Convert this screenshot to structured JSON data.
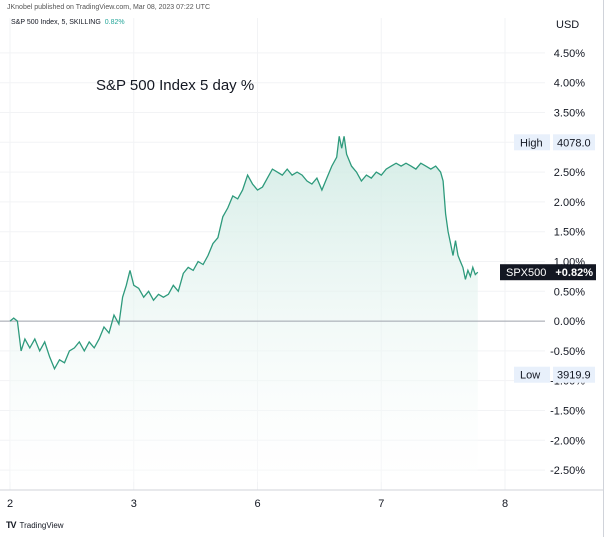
{
  "header": {
    "published_by": "JKnobel published on TradingView.com, Mar 08, 2023 07:22 UTC",
    "legend_symbol": "S&P 500 Index, 5, SKILLING",
    "legend_change": "0.82%",
    "currency": "USD"
  },
  "footer": {
    "logo_mark": "TV",
    "logo_text": "TradingView"
  },
  "colors": {
    "line": "#2e9a7c",
    "fill_top": "#cfeae3",
    "zero_line": "#9ea3ad",
    "label_bg": "#e8f0fb",
    "badge_bg": "#131722"
  },
  "chart_data": {
    "type": "area",
    "title": "S&P 500 Index 5 day %",
    "series_name": "SPX500",
    "ylim": [
      -2.7,
      4.75
    ],
    "xlim": [
      0,
      4.3
    ],
    "y_ticks": [
      "4.50%",
      "4.00%",
      "3.50%",
      "3.00%",
      "2.50%",
      "2.00%",
      "1.50%",
      "1.00%",
      "0.50%",
      "0.00%",
      "-0.50%",
      "-1.00%",
      "-1.50%",
      "-2.00%",
      "-2.50%"
    ],
    "y_tick_values": [
      4.5,
      4.0,
      3.5,
      3.0,
      2.5,
      2.0,
      1.5,
      1.0,
      0.5,
      0.0,
      -0.5,
      -1.0,
      -1.5,
      -2.0,
      -2.5
    ],
    "x_ticks": [
      "2",
      "3",
      "6",
      "7",
      "8"
    ],
    "x_tick_values": [
      0.0,
      1.0,
      2.0,
      3.0,
      4.0
    ],
    "high": {
      "label": "High",
      "value": "4078.0",
      "pct": 3.0
    },
    "low": {
      "label": "Low",
      "value": "3919.9",
      "pct": -0.9
    },
    "last": {
      "label": "SPX500",
      "value": "+0.82%",
      "pct": 0.82
    },
    "points": [
      [
        0.0,
        0.0
      ],
      [
        0.03,
        0.05
      ],
      [
        0.06,
        0.0
      ],
      [
        0.09,
        -0.5
      ],
      [
        0.12,
        -0.3
      ],
      [
        0.16,
        -0.45
      ],
      [
        0.2,
        -0.3
      ],
      [
        0.24,
        -0.5
      ],
      [
        0.28,
        -0.35
      ],
      [
        0.32,
        -0.6
      ],
      [
        0.36,
        -0.8
      ],
      [
        0.4,
        -0.65
      ],
      [
        0.44,
        -0.7
      ],
      [
        0.48,
        -0.5
      ],
      [
        0.52,
        -0.45
      ],
      [
        0.56,
        -0.35
      ],
      [
        0.6,
        -0.5
      ],
      [
        0.64,
        -0.35
      ],
      [
        0.68,
        -0.45
      ],
      [
        0.72,
        -0.3
      ],
      [
        0.76,
        -0.1
      ],
      [
        0.8,
        -0.2
      ],
      [
        0.84,
        0.1
      ],
      [
        0.88,
        -0.05
      ],
      [
        0.91,
        0.4
      ],
      [
        0.94,
        0.6
      ],
      [
        0.97,
        0.85
      ],
      [
        1.0,
        0.6
      ],
      [
        1.04,
        0.55
      ],
      [
        1.08,
        0.4
      ],
      [
        1.12,
        0.5
      ],
      [
        1.16,
        0.35
      ],
      [
        1.2,
        0.45
      ],
      [
        1.24,
        0.4
      ],
      [
        1.28,
        0.45
      ],
      [
        1.32,
        0.6
      ],
      [
        1.36,
        0.5
      ],
      [
        1.4,
        0.8
      ],
      [
        1.44,
        0.9
      ],
      [
        1.48,
        0.85
      ],
      [
        1.52,
        1.0
      ],
      [
        1.56,
        0.95
      ],
      [
        1.6,
        1.1
      ],
      [
        1.64,
        1.3
      ],
      [
        1.68,
        1.4
      ],
      [
        1.72,
        1.75
      ],
      [
        1.76,
        1.9
      ],
      [
        1.8,
        2.1
      ],
      [
        1.84,
        2.05
      ],
      [
        1.88,
        2.2
      ],
      [
        1.92,
        2.45
      ],
      [
        1.96,
        2.3
      ],
      [
        2.0,
        2.2
      ],
      [
        2.04,
        2.25
      ],
      [
        2.08,
        2.4
      ],
      [
        2.12,
        2.55
      ],
      [
        2.16,
        2.5
      ],
      [
        2.2,
        2.45
      ],
      [
        2.24,
        2.55
      ],
      [
        2.28,
        2.45
      ],
      [
        2.32,
        2.5
      ],
      [
        2.36,
        2.45
      ],
      [
        2.4,
        2.35
      ],
      [
        2.44,
        2.3
      ],
      [
        2.48,
        2.4
      ],
      [
        2.52,
        2.2
      ],
      [
        2.56,
        2.4
      ],
      [
        2.6,
        2.6
      ],
      [
        2.64,
        2.75
      ],
      [
        2.66,
        3.1
      ],
      [
        2.68,
        2.9
      ],
      [
        2.7,
        3.1
      ],
      [
        2.72,
        2.8
      ],
      [
        2.76,
        2.6
      ],
      [
        2.8,
        2.5
      ],
      [
        2.84,
        2.35
      ],
      [
        2.88,
        2.45
      ],
      [
        2.92,
        2.4
      ],
      [
        2.96,
        2.5
      ],
      [
        3.0,
        2.45
      ],
      [
        3.04,
        2.55
      ],
      [
        3.08,
        2.6
      ],
      [
        3.12,
        2.65
      ],
      [
        3.16,
        2.6
      ],
      [
        3.2,
        2.65
      ],
      [
        3.24,
        2.6
      ],
      [
        3.28,
        2.55
      ],
      [
        3.32,
        2.65
      ],
      [
        3.36,
        2.6
      ],
      [
        3.4,
        2.55
      ],
      [
        3.44,
        2.6
      ],
      [
        3.48,
        2.5
      ],
      [
        3.5,
        2.35
      ],
      [
        3.52,
        1.8
      ],
      [
        3.54,
        1.5
      ],
      [
        3.56,
        1.3
      ],
      [
        3.58,
        1.1
      ],
      [
        3.6,
        1.35
      ],
      [
        3.62,
        1.1
      ],
      [
        3.64,
        1.0
      ],
      [
        3.66,
        0.9
      ],
      [
        3.68,
        0.7
      ],
      [
        3.7,
        0.85
      ],
      [
        3.72,
        0.75
      ],
      [
        3.74,
        0.9
      ],
      [
        3.76,
        0.78
      ],
      [
        3.78,
        0.82
      ]
    ]
  }
}
